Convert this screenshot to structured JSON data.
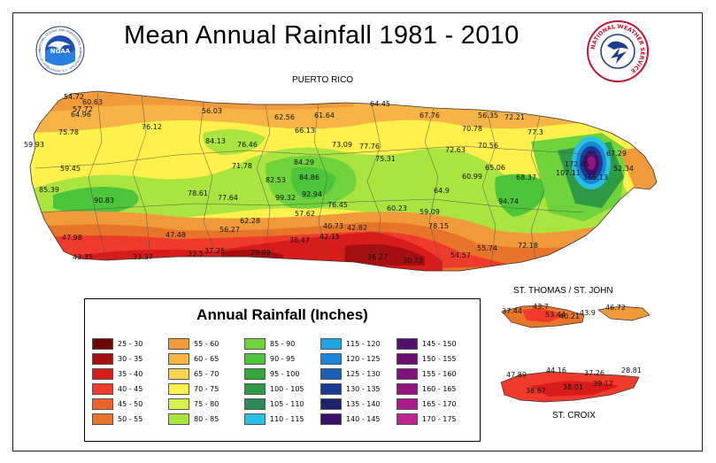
{
  "title": "Mean Annual Rainfall 1981 - 2010",
  "regions": {
    "puerto_rico": "PUERTO RICO",
    "st_thomas_st_john": "ST. THOMAS / ST. JOHN",
    "st_croix": "ST. CROIX"
  },
  "logos": {
    "noaa_text": "NOAA",
    "noaa_ring_text": "NATIONAL OCEANIC AND ATMOSPHERIC ADMINISTRATION · U.S. DEPARTMENT OF COMMERCE",
    "nws_ring_text": "NATIONAL WEATHER SERVICE"
  },
  "legend": {
    "title": "Annual Rainfall (Inches)",
    "items": [
      {
        "label": "25 - 30",
        "color": "#6b0a0a"
      },
      {
        "label": "30 - 35",
        "color": "#a50f0f"
      },
      {
        "label": "35 - 40",
        "color": "#d71c1c"
      },
      {
        "label": "40 - 45",
        "color": "#ee3b2b"
      },
      {
        "label": "45 - 50",
        "color": "#f2612a"
      },
      {
        "label": "50 - 55",
        "color": "#e8742a"
      },
      {
        "label": "55 - 60",
        "color": "#f19a3b"
      },
      {
        "label": "60 - 65",
        "color": "#f6b447"
      },
      {
        "label": "65 - 70",
        "color": "#fbd44f"
      },
      {
        "label": "70 - 75",
        "color": "#fff04b"
      },
      {
        "label": "75 - 80",
        "color": "#d8f04a"
      },
      {
        "label": "80 - 85",
        "color": "#a9e43f"
      },
      {
        "label": "85 - 90",
        "color": "#6fd33b"
      },
      {
        "label": "90 - 95",
        "color": "#4cc53a"
      },
      {
        "label": "95 - 100",
        "color": "#35a83a"
      },
      {
        "label": "100 - 105",
        "color": "#2e9a46"
      },
      {
        "label": "105 - 110",
        "color": "#2c8a55"
      },
      {
        "label": "110 - 115",
        "color": "#27c1e6"
      },
      {
        "label": "115 - 120",
        "color": "#1ea5e6"
      },
      {
        "label": "120 - 125",
        "color": "#1b84d6"
      },
      {
        "label": "125 - 130",
        "color": "#1c5fb8"
      },
      {
        "label": "130 - 135",
        "color": "#183c94"
      },
      {
        "label": "135 - 140",
        "color": "#1e236e"
      },
      {
        "label": "140 - 145",
        "color": "#3b0f6b"
      },
      {
        "label": "145 - 150",
        "color": "#55106f"
      },
      {
        "label": "150 - 155",
        "color": "#6a0f6e"
      },
      {
        "label": "155 - 160",
        "color": "#7f1177"
      },
      {
        "label": "160 - 165",
        "color": "#93147f"
      },
      {
        "label": "165 - 170",
        "color": "#a91a8a"
      },
      {
        "label": "170 - 175",
        "color": "#bf2496"
      }
    ]
  },
  "stations": {
    "puerto_rico": [
      "54.72",
      "60.63",
      "57.72",
      "64.96",
      "56.03",
      "62.56",
      "61.64",
      "64.45",
      "67.76",
      "56.35",
      "72.21",
      "59.93",
      "75.78",
      "76.12",
      "66.13",
      "70.78",
      "77.3",
      "84.13",
      "76.46",
      "73.09",
      "77.76",
      "70.56",
      "71.78",
      "84.29",
      "75.31",
      "72.63",
      "65.06",
      "67.29",
      "59.45",
      "82.53",
      "84.86",
      "60.99",
      "68.37",
      "172.45",
      "52.34",
      "85.39",
      "90.83",
      "78.61",
      "77.64",
      "99.32",
      "92.94",
      "107.11",
      "165.13",
      "57.62",
      "76.45",
      "60.23",
      "64.9",
      "59.09",
      "94.74",
      "62.28",
      "56.27",
      "40.73",
      "42.82",
      "78.15",
      "47.98",
      "47.48",
      "38.47",
      "42.15",
      "55.74",
      "72.18",
      "43.35",
      "33.37",
      "33.5",
      "37.25",
      "29.09",
      "36.27",
      "30.72",
      "54.57"
    ],
    "st_thomas_st_john": [
      "37.44",
      "43.7",
      "53.44",
      "40.21",
      "43.9",
      "46.72"
    ],
    "st_croix": [
      "47.89",
      "44.16",
      "37.26",
      "28.81",
      "38.67",
      "38.01",
      "39.17"
    ]
  }
}
